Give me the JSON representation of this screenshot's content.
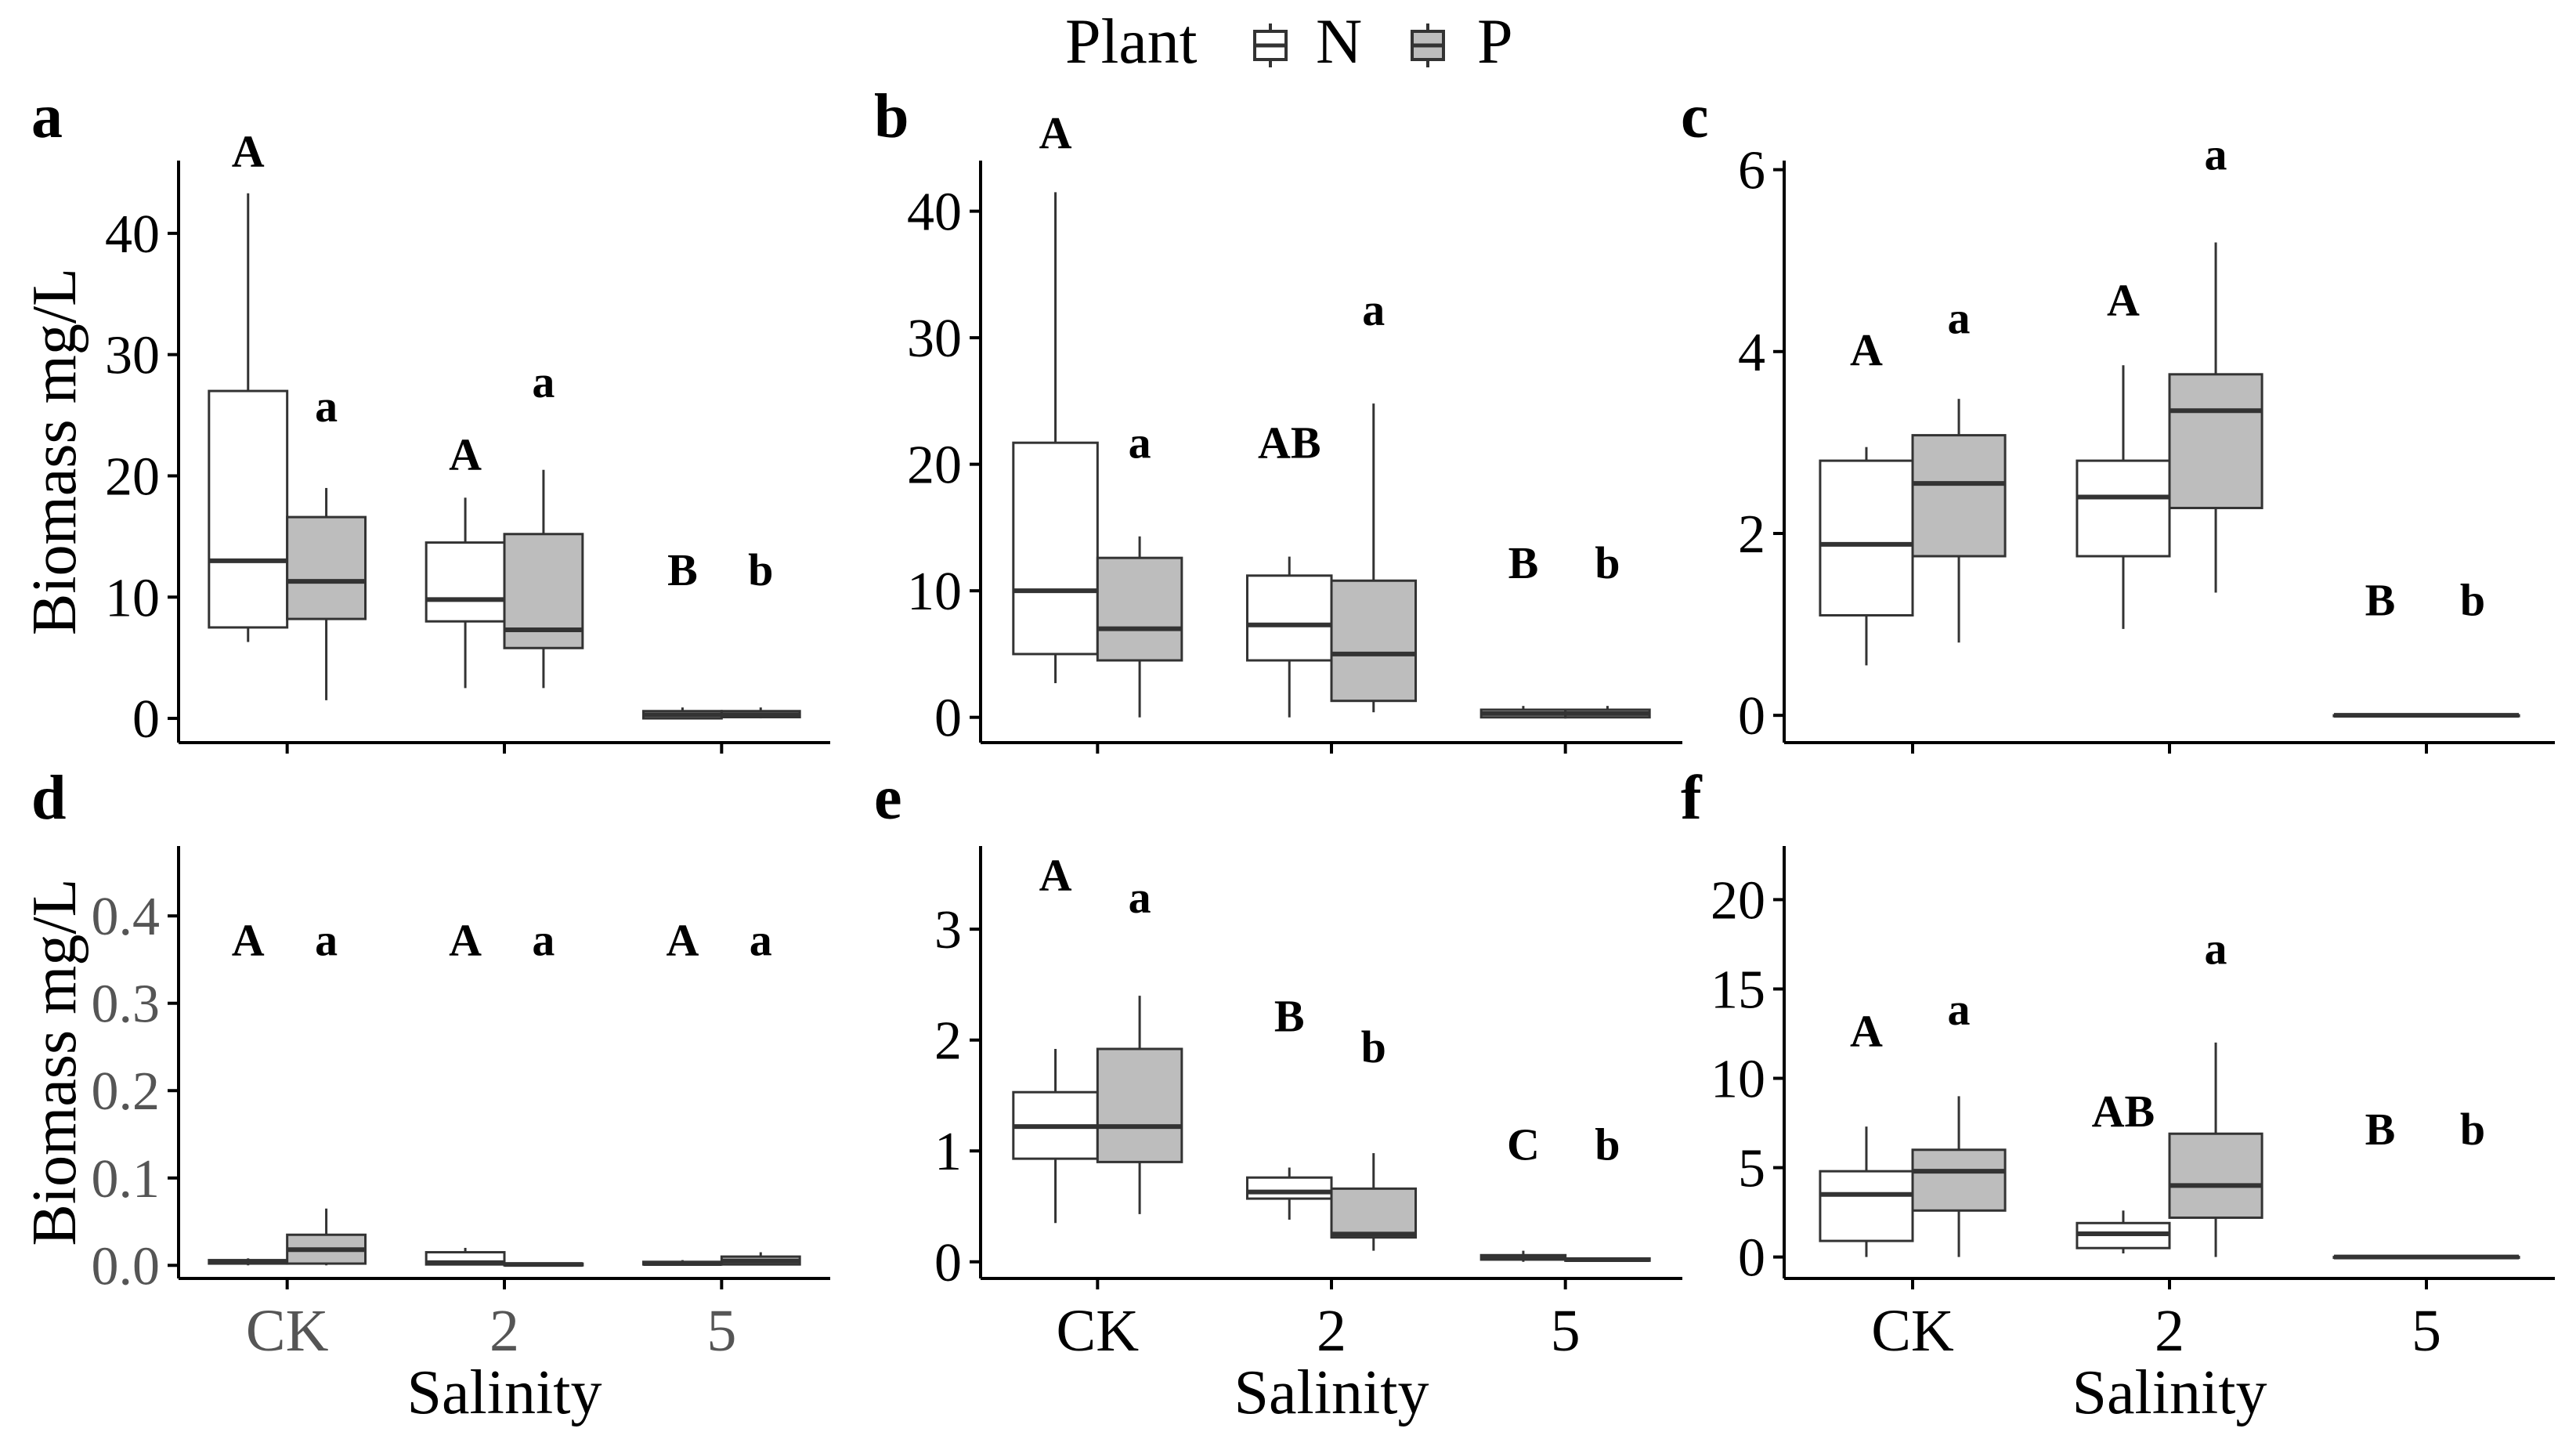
{
  "legend": {
    "title": "Plant",
    "position": "top",
    "entries": [
      {
        "label": "N",
        "fill": "#ffffff"
      },
      {
        "label": "P",
        "fill": "#bdbdbd"
      }
    ]
  },
  "colors": {
    "stroke": "#333333",
    "median": "#333333",
    "fill_N": "#ffffff",
    "fill_P": "#bdbdbd"
  },
  "chart_data": [
    {
      "panel": "a",
      "type": "box",
      "ylabel": "Biomass mg/L",
      "xlabel": "",
      "ylim": [
        -2,
        46
      ],
      "yticks": [
        0,
        10,
        20,
        30,
        40
      ],
      "categories": [
        "CK",
        "2",
        "5"
      ],
      "show_xticklabels": false,
      "series": [
        {
          "name": "N",
          "boxes": [
            {
              "min": 6.3,
              "q1": 7.5,
              "median": 13,
              "q3": 27,
              "max": 43.3
            },
            {
              "min": 2.5,
              "q1": 8,
              "median": 9.8,
              "q3": 14.5,
              "max": 18.2
            },
            {
              "min": 0,
              "q1": 0,
              "median": 0.3,
              "q3": 0.6,
              "max": 0.9
            }
          ]
        },
        {
          "name": "P",
          "boxes": [
            {
              "min": 1.5,
              "q1": 8.2,
              "median": 11.3,
              "q3": 16.6,
              "max": 19
            },
            {
              "min": 2.5,
              "q1": 5.8,
              "median": 7.3,
              "q3": 15.2,
              "max": 20.5
            },
            {
              "min": 0,
              "q1": 0.1,
              "median": 0.3,
              "q3": 0.6,
              "max": 0.9
            }
          ]
        }
      ],
      "letters_N": [
        "A",
        "A",
        "B"
      ],
      "letters_P": [
        "a",
        "a",
        "b"
      ],
      "letter_y_N": [
        45.5,
        20.5,
        11
      ],
      "letter_y_P": [
        24.5,
        26.5,
        11
      ]
    },
    {
      "panel": "b",
      "type": "box",
      "ylabel": "",
      "xlabel": "",
      "ylim": [
        -2,
        44
      ],
      "yticks": [
        0,
        10,
        20,
        30,
        40
      ],
      "categories": [
        "CK",
        "2",
        "5"
      ],
      "show_xticklabels": false,
      "series": [
        {
          "name": "N",
          "boxes": [
            {
              "min": 2.7,
              "q1": 5,
              "median": 10,
              "q3": 21.7,
              "max": 41.5
            },
            {
              "min": 0,
              "q1": 4.5,
              "median": 7.3,
              "q3": 11.2,
              "max": 12.7
            },
            {
              "min": 0,
              "q1": 0,
              "median": 0.3,
              "q3": 0.6,
              "max": 0.9
            }
          ]
        },
        {
          "name": "P",
          "boxes": [
            {
              "min": 0,
              "q1": 4.5,
              "median": 7,
              "q3": 12.6,
              "max": 14.3
            },
            {
              "min": 0.4,
              "q1": 1.3,
              "median": 5,
              "q3": 10.8,
              "max": 24.8
            },
            {
              "min": 0,
              "q1": 0,
              "median": 0.3,
              "q3": 0.6,
              "max": 0.9
            }
          ]
        }
      ],
      "letters_N": [
        "A",
        "AB",
        "B"
      ],
      "letters_P": [
        "a",
        "a",
        "b"
      ],
      "letter_y_N": [
        45,
        20.5,
        11
      ],
      "letter_y_P": [
        20.5,
        31,
        11
      ]
    },
    {
      "panel": "c",
      "type": "box",
      "ylabel": "",
      "xlabel": "",
      "ylim": [
        -0.3,
        6.1
      ],
      "yticks": [
        0,
        2,
        4,
        6
      ],
      "categories": [
        "CK",
        "2",
        "5"
      ],
      "show_xticklabels": false,
      "series": [
        {
          "name": "N",
          "boxes": [
            {
              "min": 0.55,
              "q1": 1.1,
              "median": 1.88,
              "q3": 2.8,
              "max": 2.95
            },
            {
              "min": 0.95,
              "q1": 1.75,
              "median": 2.4,
              "q3": 2.8,
              "max": 3.85
            },
            {
              "min": 0,
              "q1": 0,
              "median": 0,
              "q3": 0,
              "max": 0
            }
          ]
        },
        {
          "name": "P",
          "boxes": [
            {
              "min": 0.8,
              "q1": 1.75,
              "median": 2.55,
              "q3": 3.08,
              "max": 3.48
            },
            {
              "min": 1.35,
              "q1": 2.28,
              "median": 3.35,
              "q3": 3.75,
              "max": 5.2
            },
            {
              "min": 0,
              "q1": 0,
              "median": 0,
              "q3": 0,
              "max": 0
            }
          ]
        }
      ],
      "letters_N": [
        "A",
        "A",
        "B"
      ],
      "letters_P": [
        "a",
        "a",
        "b"
      ],
      "letter_y_N": [
        3.85,
        4.4,
        1.1
      ],
      "letter_y_P": [
        4.2,
        6.0,
        1.1
      ]
    },
    {
      "panel": "d",
      "type": "box",
      "ylabel": "Biomass mg/L",
      "xlabel": "Salinity",
      "ylim": [
        -0.015,
        0.48
      ],
      "yticks": [
        0.0,
        0.1,
        0.2,
        0.3,
        0.4
      ],
      "yticklabels": [
        "0.0",
        "0.1",
        "0.2",
        "0.3",
        "0.4"
      ],
      "categories": [
        "CK",
        "2",
        "5"
      ],
      "show_xticklabels": true,
      "series": [
        {
          "name": "N",
          "boxes": [
            {
              "min": 0,
              "q1": 0.002,
              "median": 0.004,
              "q3": 0.006,
              "max": 0.008
            },
            {
              "min": 0,
              "q1": 0.001,
              "median": 0.003,
              "q3": 0.015,
              "max": 0.02
            },
            {
              "min": 0,
              "q1": 0.001,
              "median": 0.002,
              "q3": 0.004,
              "max": 0.006
            }
          ]
        },
        {
          "name": "P",
          "boxes": [
            {
              "min": 0,
              "q1": 0.002,
              "median": 0.018,
              "q3": 0.035,
              "max": 0.065
            },
            {
              "min": 0,
              "q1": 0,
              "median": 0.001,
              "q3": 0.002,
              "max": 0.003
            },
            {
              "min": 0,
              "q1": 0.001,
              "median": 0.005,
              "q3": 0.01,
              "max": 0.015
            }
          ]
        }
      ],
      "letters_N": [
        "A",
        "A",
        "A"
      ],
      "letters_P": [
        "a",
        "a",
        "a"
      ],
      "letter_y_N": [
        0.355,
        0.355,
        0.355
      ],
      "letter_y_P": [
        0.355,
        0.355,
        0.355
      ]
    },
    {
      "panel": "e",
      "type": "box",
      "ylabel": "",
      "xlabel": "Salinity",
      "ylim": [
        -0.15,
        3.75
      ],
      "yticks": [
        0,
        1,
        2,
        3
      ],
      "categories": [
        "CK",
        "2",
        "5"
      ],
      "show_xticklabels": true,
      "series": [
        {
          "name": "N",
          "boxes": [
            {
              "min": 0.35,
              "q1": 0.93,
              "median": 1.22,
              "q3": 1.53,
              "max": 1.92
            },
            {
              "min": 0.38,
              "q1": 0.57,
              "median": 0.63,
              "q3": 0.76,
              "max": 0.85
            },
            {
              "min": 0,
              "q1": 0.02,
              "median": 0.04,
              "q3": 0.06,
              "max": 0.1
            }
          ]
        },
        {
          "name": "P",
          "boxes": [
            {
              "min": 0.43,
              "q1": 0.9,
              "median": 1.22,
              "q3": 1.92,
              "max": 2.4
            },
            {
              "min": 0.1,
              "q1": 0.22,
              "median": 0.25,
              "q3": 0.66,
              "max": 0.98
            },
            {
              "min": 0,
              "q1": 0.01,
              "median": 0.02,
              "q3": 0.03,
              "max": 0.04
            }
          ]
        }
      ],
      "letters_N": [
        "A",
        "B",
        "C"
      ],
      "letters_P": [
        "a",
        "b",
        "b"
      ],
      "letter_y_N": [
        3.35,
        2.08,
        0.92
      ],
      "letter_y_P": [
        3.15,
        1.8,
        0.92
      ]
    },
    {
      "panel": "f",
      "type": "box",
      "ylabel": "",
      "xlabel": "Salinity",
      "ylim": [
        -1.2,
        23
      ],
      "yticks": [
        0,
        5,
        10,
        15,
        20
      ],
      "categories": [
        "CK",
        "2",
        "5"
      ],
      "show_xticklabels": true,
      "series": [
        {
          "name": "N",
          "boxes": [
            {
              "min": 0,
              "q1": 0.9,
              "median": 3.5,
              "q3": 4.8,
              "max": 7.3
            },
            {
              "min": 0.2,
              "q1": 0.5,
              "median": 1.3,
              "q3": 1.9,
              "max": 2.6
            },
            {
              "min": 0,
              "q1": 0,
              "median": 0,
              "q3": 0,
              "max": 0
            }
          ]
        },
        {
          "name": "P",
          "boxes": [
            {
              "min": 0,
              "q1": 2.6,
              "median": 4.8,
              "q3": 6,
              "max": 9
            },
            {
              "min": 0,
              "q1": 2.2,
              "median": 4,
              "q3": 6.9,
              "max": 12
            },
            {
              "min": 0,
              "q1": 0,
              "median": 0,
              "q3": 0,
              "max": 0
            }
          ]
        }
      ],
      "letters_N": [
        "A",
        "AB",
        "B"
      ],
      "letters_P": [
        "a",
        "a",
        "b"
      ],
      "letter_y_N": [
        11.8,
        7.3,
        6.3
      ],
      "letter_y_P": [
        13.0,
        16.4,
        6.3
      ]
    }
  ]
}
